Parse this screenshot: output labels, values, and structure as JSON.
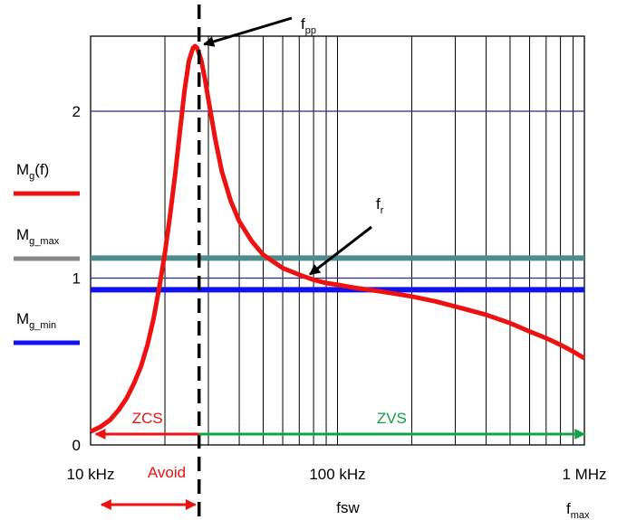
{
  "chart_data": {
    "type": "line",
    "xscale": "log",
    "xlim": [
      10000,
      1000000
    ],
    "ylim": [
      0,
      2.45
    ],
    "x_ticks": [
      {
        "value": 10000,
        "label": "10 kHz"
      },
      {
        "value": 100000,
        "label": "100 kHz"
      },
      {
        "value": 1000000,
        "label": "1 MHz"
      }
    ],
    "y_ticks": [
      {
        "value": 0,
        "label": "0"
      },
      {
        "value": 1,
        "label": "1"
      },
      {
        "value": 2,
        "label": "2"
      }
    ],
    "xlabel": "fsw",
    "grid": true,
    "series": [
      {
        "name": "Mg(f)",
        "color": "#ee1111",
        "points": [
          [
            10000,
            0.08
          ],
          [
            11000,
            0.11
          ],
          [
            12000,
            0.15
          ],
          [
            13000,
            0.21
          ],
          [
            14000,
            0.28
          ],
          [
            15000,
            0.37
          ],
          [
            16000,
            0.47
          ],
          [
            17000,
            0.6
          ],
          [
            18000,
            0.76
          ],
          [
            19000,
            0.95
          ],
          [
            20000,
            1.15
          ],
          [
            21000,
            1.38
          ],
          [
            22000,
            1.62
          ],
          [
            23000,
            1.88
          ],
          [
            24000,
            2.12
          ],
          [
            25000,
            2.3
          ],
          [
            26000,
            2.38
          ],
          [
            26500,
            2.39
          ],
          [
            27000,
            2.38
          ],
          [
            28000,
            2.31
          ],
          [
            29000,
            2.2
          ],
          [
            30000,
            2.07
          ],
          [
            32000,
            1.83
          ],
          [
            34000,
            1.64
          ],
          [
            37000,
            1.46
          ],
          [
            40000,
            1.34
          ],
          [
            45000,
            1.22
          ],
          [
            50000,
            1.14
          ],
          [
            60000,
            1.06
          ],
          [
            70000,
            1.02
          ],
          [
            80000,
            0.99
          ],
          [
            90000,
            0.97
          ],
          [
            100000,
            0.96
          ],
          [
            120000,
            0.94
          ],
          [
            150000,
            0.92
          ],
          [
            200000,
            0.89
          ],
          [
            250000,
            0.86
          ],
          [
            300000,
            0.83
          ],
          [
            400000,
            0.78
          ],
          [
            500000,
            0.73
          ],
          [
            600000,
            0.68
          ],
          [
            700000,
            0.64
          ],
          [
            800000,
            0.6
          ],
          [
            900000,
            0.56
          ],
          [
            1000000,
            0.52
          ]
        ]
      },
      {
        "name": "Mg_max",
        "color": "#4d8c8c",
        "y": 1.12
      },
      {
        "name": "Mg_min",
        "color": "#1111ee",
        "y": 0.93
      }
    ],
    "reference_lines": [
      {
        "y": 1,
        "color": "#2a2a80"
      },
      {
        "y": 2,
        "color": "#2a2a80"
      }
    ],
    "vertical_marker": {
      "x": 27500,
      "style": "dashed"
    },
    "regions": [
      {
        "label": "ZCS",
        "from": 27500,
        "to": 10500,
        "color": "#ee1111",
        "y": 0.065
      },
      {
        "label": "ZVS",
        "from": 27500,
        "to": 1000000,
        "color": "#13a04a",
        "y": 0.065
      }
    ],
    "avoid_label": "Avoid",
    "annotations": [
      {
        "main": "f",
        "sub": "pp",
        "x": 26500,
        "y": 2.39
      },
      {
        "main": "f",
        "sub": "r",
        "x": 80000,
        "y": 0.99
      }
    ],
    "f_max_label": {
      "main": "f",
      "sub": "max"
    },
    "legend": [
      {
        "main": "M",
        "sub": "g",
        "tail": "(f)",
        "color": "#ee1111"
      },
      {
        "main": "M",
        "sub": "g_max",
        "tail": "",
        "color": "#888888"
      },
      {
        "main": "M",
        "sub": "g_min",
        "tail": "",
        "color": "#1111ee"
      }
    ]
  }
}
